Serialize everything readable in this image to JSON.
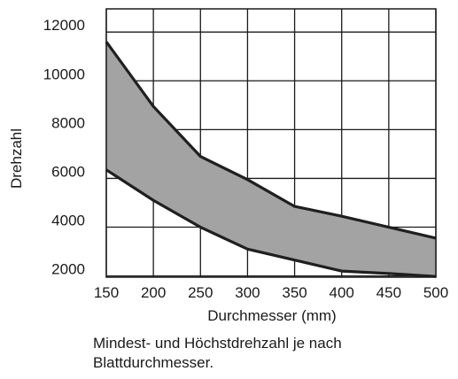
{
  "chart_data": {
    "type": "area",
    "x": [
      150,
      200,
      250,
      300,
      350,
      400,
      450,
      500
    ],
    "series": [
      {
        "values": [
          6350,
          5100,
          4000,
          3100,
          2650,
          2200,
          2100,
          1980
        ]
      },
      {
        "values": [
          11600,
          8950,
          6900,
          5950,
          4850,
          4450,
          4000,
          3550
        ]
      }
    ],
    "fill_color": "#a3a3a3",
    "line_color": "#1f1f1f",
    "xlabel": "Durchmesser (mm)",
    "ylabel": "Drehzahl",
    "xticks": [
      "150",
      "200",
      "250",
      "300",
      "350",
      "400",
      "450",
      "500"
    ],
    "yticks": [
      "2000",
      "4000",
      "6000",
      "8000",
      "10000",
      "12000"
    ],
    "xlim": [
      150,
      500
    ],
    "ylim": [
      1950,
      12950
    ],
    "grid": true
  },
  "caption": {
    "line1": "Mindest- und Höchstdrehzahl je nach",
    "line2": "Blattdurchmesser."
  }
}
